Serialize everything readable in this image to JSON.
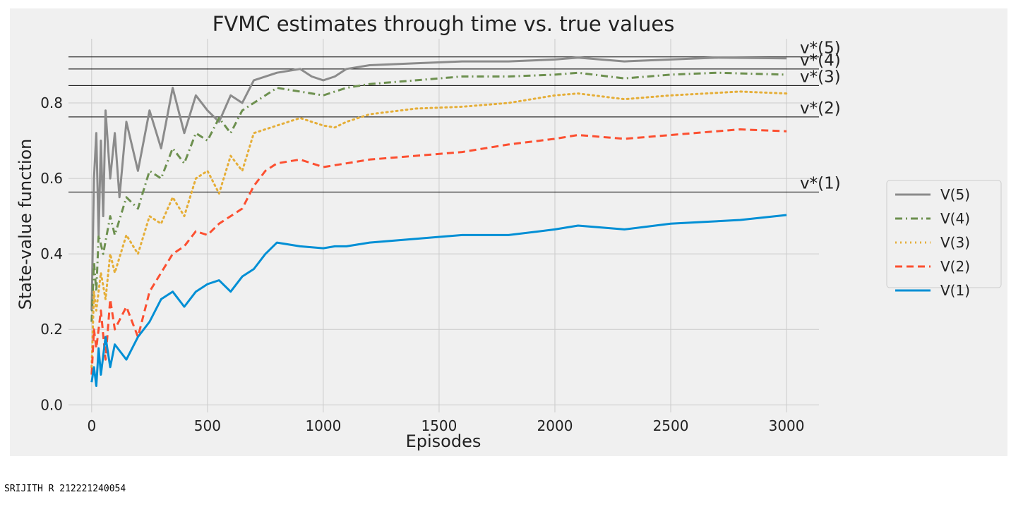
{
  "caption": "SRIJITH R 212221240054",
  "chart_data": {
    "type": "line",
    "title": "FVMC estimates through time vs. true values",
    "xlabel": "Episodes",
    "ylabel": "State-value function",
    "xlim": [
      -100,
      3140
    ],
    "ylim": [
      -0.02,
      0.97
    ],
    "xticks": [
      0,
      500,
      1000,
      1500,
      2000,
      2500,
      3000
    ],
    "xtick_labels": [
      "0",
      "500",
      "1000",
      "1500",
      "2000",
      "2500",
      "3000"
    ],
    "yticks": [
      0.0,
      0.2,
      0.4,
      0.6,
      0.8
    ],
    "ytick_labels": [
      "0.0",
      "0.2",
      "0.4",
      "0.6",
      "0.8"
    ],
    "grid": true,
    "legend_position": "right",
    "true_values": [
      {
        "label": "v*(1)",
        "value": 0.564
      },
      {
        "label": "v*(2)",
        "value": 0.763
      },
      {
        "label": "v*(3)",
        "value": 0.846
      },
      {
        "label": "v*(4)",
        "value": 0.89
      },
      {
        "label": "v*(5)",
        "value": 0.922
      }
    ],
    "series": [
      {
        "name": "V(5)",
        "color": "#8b8b8b",
        "dash": "solid",
        "x": [
          0,
          10,
          20,
          30,
          40,
          50,
          60,
          80,
          100,
          120,
          150,
          200,
          250,
          300,
          350,
          400,
          450,
          500,
          550,
          600,
          650,
          700,
          800,
          900,
          950,
          1000,
          1050,
          1100,
          1200,
          1400,
          1600,
          1800,
          2000,
          2100,
          2300,
          2500,
          2700,
          3000
        ],
        "y": [
          0.25,
          0.6,
          0.72,
          0.45,
          0.7,
          0.5,
          0.78,
          0.6,
          0.72,
          0.55,
          0.75,
          0.62,
          0.78,
          0.68,
          0.84,
          0.72,
          0.82,
          0.78,
          0.75,
          0.82,
          0.8,
          0.86,
          0.88,
          0.89,
          0.87,
          0.86,
          0.87,
          0.89,
          0.9,
          0.905,
          0.91,
          0.91,
          0.915,
          0.92,
          0.91,
          0.915,
          0.92,
          0.918
        ]
      },
      {
        "name": "V(4)",
        "color": "#6d904f",
        "dash": "dashdot",
        "x": [
          0,
          10,
          20,
          30,
          50,
          80,
          100,
          150,
          200,
          250,
          300,
          350,
          400,
          450,
          500,
          550,
          600,
          650,
          700,
          800,
          900,
          1000,
          1050,
          1100,
          1200,
          1400,
          1600,
          1800,
          2000,
          2100,
          2300,
          2500,
          2700,
          3000
        ],
        "y": [
          0.22,
          0.38,
          0.3,
          0.45,
          0.4,
          0.5,
          0.45,
          0.55,
          0.52,
          0.62,
          0.6,
          0.68,
          0.64,
          0.72,
          0.7,
          0.76,
          0.72,
          0.78,
          0.8,
          0.84,
          0.83,
          0.82,
          0.83,
          0.84,
          0.85,
          0.86,
          0.87,
          0.87,
          0.875,
          0.88,
          0.865,
          0.875,
          0.88,
          0.875
        ]
      },
      {
        "name": "V(3)",
        "color": "#e5ae38",
        "dash": "dotted",
        "x": [
          0,
          10,
          20,
          40,
          60,
          80,
          100,
          150,
          200,
          250,
          300,
          350,
          400,
          450,
          500,
          550,
          600,
          650,
          700,
          800,
          900,
          1000,
          1050,
          1100,
          1200,
          1400,
          1600,
          1800,
          2000,
          2100,
          2300,
          2500,
          2800,
          3000
        ],
        "y": [
          0.1,
          0.3,
          0.25,
          0.35,
          0.28,
          0.4,
          0.35,
          0.45,
          0.4,
          0.5,
          0.48,
          0.55,
          0.5,
          0.6,
          0.62,
          0.56,
          0.66,
          0.62,
          0.72,
          0.74,
          0.76,
          0.74,
          0.735,
          0.75,
          0.77,
          0.785,
          0.79,
          0.8,
          0.82,
          0.825,
          0.81,
          0.82,
          0.83,
          0.825
        ]
      },
      {
        "name": "V(2)",
        "color": "#fc4f30",
        "dash": "dashed",
        "x": [
          0,
          10,
          20,
          40,
          60,
          80,
          100,
          150,
          200,
          250,
          300,
          350,
          400,
          450,
          500,
          550,
          600,
          650,
          700,
          750,
          800,
          900,
          1000,
          1050,
          1100,
          1200,
          1400,
          1600,
          1800,
          2000,
          2100,
          2200,
          2300,
          2500,
          2800,
          3000
        ],
        "y": [
          0.08,
          0.2,
          0.15,
          0.25,
          0.12,
          0.28,
          0.2,
          0.26,
          0.18,
          0.3,
          0.35,
          0.4,
          0.42,
          0.46,
          0.45,
          0.48,
          0.5,
          0.52,
          0.58,
          0.62,
          0.64,
          0.65,
          0.63,
          0.635,
          0.64,
          0.65,
          0.66,
          0.67,
          0.69,
          0.705,
          0.715,
          0.71,
          0.705,
          0.715,
          0.73,
          0.725
        ]
      },
      {
        "name": "V(1)",
        "color": "#008fd5",
        "dash": "solid",
        "x": [
          0,
          10,
          20,
          30,
          40,
          60,
          80,
          100,
          150,
          200,
          250,
          300,
          350,
          400,
          450,
          500,
          550,
          600,
          650,
          700,
          750,
          800,
          900,
          1000,
          1050,
          1100,
          1200,
          1400,
          1600,
          1800,
          2000,
          2100,
          2300,
          2500,
          2800,
          3000
        ],
        "y": [
          0.06,
          0.1,
          0.05,
          0.15,
          0.08,
          0.18,
          0.1,
          0.16,
          0.12,
          0.18,
          0.22,
          0.28,
          0.3,
          0.26,
          0.3,
          0.32,
          0.33,
          0.3,
          0.34,
          0.36,
          0.4,
          0.43,
          0.42,
          0.415,
          0.42,
          0.42,
          0.43,
          0.44,
          0.45,
          0.45,
          0.465,
          0.475,
          0.465,
          0.48,
          0.49,
          0.503
        ]
      }
    ]
  }
}
